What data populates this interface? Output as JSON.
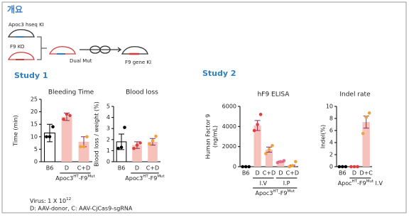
{
  "header": {
    "title": "개요"
  },
  "diagram": {
    "labels": [
      "Apoc3 hseq KI",
      "F9 KO",
      "Dual Mut",
      "F9 gene KI"
    ]
  },
  "study1": "Study 1",
  "study2": "Study 2",
  "notes": {
    "virus": [
      "Virus: 1 X 10",
      "12"
    ],
    "legend": "D: AAV-donor, C: AAV-CjCas9-sgRNA"
  },
  "chart_data": [
    {
      "type": "bar",
      "title": "Bleeding Time",
      "ylabel": [
        "Time (min)"
      ],
      "categories": [
        "B6",
        "D",
        "C+D"
      ],
      "values": [
        11.5,
        18,
        8
      ],
      "errors": [
        3.5,
        1.5,
        2
      ],
      "points": [
        [
          10,
          10,
          14
        ],
        [
          17,
          19,
          18.5
        ],
        [
          6,
          6,
          10
        ]
      ],
      "bar_colors": [
        "#ffffff",
        "#f6c1bb",
        "#f6c1bb"
      ],
      "point_colors": [
        "#000000",
        "#e23b3b",
        "#f0a23a"
      ],
      "x_group_labels": [
        [
          "Apoc3",
          "HT",
          "-F9",
          "Mut"
        ]
      ],
      "ylim": [
        0,
        25
      ],
      "yticks": [
        0,
        5,
        10,
        15,
        20,
        25
      ]
    },
    {
      "type": "bar",
      "title": "Blood loss",
      "ylabel": [
        "Blood loss / weight (%)"
      ],
      "categories": [
        "B6",
        "D",
        "C+D"
      ],
      "values": [
        1.8,
        1.5,
        1.8
      ],
      "errors": [
        0.7,
        0.3,
        0.3
      ],
      "points": [
        [
          1.2,
          1.3,
          3.1
        ],
        [
          1.2,
          1.5,
          1.7
        ],
        [
          1.6,
          1.9,
          2.3
        ]
      ],
      "bar_colors": [
        "#ffffff",
        "#f6c1bb",
        "#f6c1bb"
      ],
      "point_colors": [
        "#000000",
        "#e23b3b",
        "#f0a23a"
      ],
      "x_group_labels": [
        [
          "Apoc3",
          "HT",
          "-F9",
          "Mut"
        ]
      ],
      "ylim": [
        0,
        5
      ],
      "yticks": [
        0,
        1,
        2,
        3,
        4,
        5
      ]
    },
    {
      "type": "bar",
      "title": "hF9 ELISA",
      "ylabel": [
        "Human Factor 9",
        "(ng/mL)"
      ],
      "categories": [
        "B6",
        "D",
        "C+D",
        "D",
        "C+D"
      ],
      "values": [
        0,
        4100,
        1700,
        500,
        100
      ],
      "errors": [
        0,
        500,
        250,
        60,
        60
      ],
      "points": [
        [
          0,
          0,
          0
        ],
        [
          3600,
          4200,
          5200
        ],
        [
          1300,
          1700,
          2100
        ],
        [
          400,
          500,
          600
        ],
        [
          0,
          100,
          500
        ]
      ],
      "bar_colors": [
        "#ffffff",
        "#f6c1bb",
        "#f6c1bb",
        "#f6c1bb",
        "#f6c1bb"
      ],
      "point_colors": [
        "#000000",
        "#e23b3b",
        "#f0a23a",
        "#e86a8a",
        "#f0a23a"
      ],
      "x_group_labels": [
        [
          "I.V"
        ],
        [
          "I.P"
        ],
        [
          "Apoc3",
          "HT",
          "-F9",
          "Mut"
        ]
      ],
      "ylim": [
        0,
        6000
      ],
      "yticks": [
        0,
        2000,
        4000,
        6000
      ]
    },
    {
      "type": "bar",
      "title": "Indel rate",
      "ylabel": [
        "Indel(%)"
      ],
      "categories": [
        "B6",
        "D",
        "D+C"
      ],
      "values": [
        0,
        0,
        7.4
      ],
      "errors": [
        0,
        0,
        1
      ],
      "points": [
        [
          0,
          0,
          0
        ],
        [
          0,
          0,
          0
        ],
        [
          5.5,
          8.2,
          8.9
        ]
      ],
      "bar_colors": [
        "#ffffff",
        "#f6c1bb",
        "#f6c1bb"
      ],
      "point_colors": [
        "#000000",
        "#e23b3b",
        "#f0a23a"
      ],
      "x_group_labels": [
        [
          "Apoc",
          "HT",
          "-F9",
          "Mut",
          " I.V"
        ]
      ],
      "ylim": [
        0,
        10
      ],
      "yticks": [
        0,
        2,
        4,
        6,
        8,
        10
      ]
    }
  ]
}
